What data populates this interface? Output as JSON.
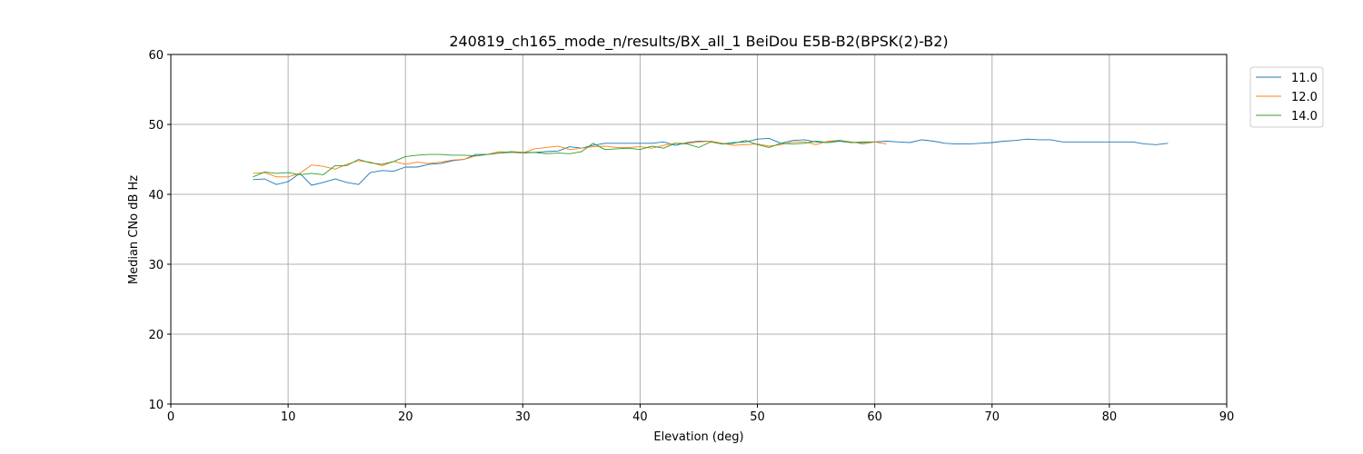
{
  "chart_data": {
    "type": "line",
    "title": "240819_ch165_mode_n/results/BX_all_1 BeiDou E5B-B2(BPSK(2)-B2)",
    "xlabel": "Elevation (deg)",
    "ylabel": "Median CNo dB Hz",
    "xlim": [
      0,
      90
    ],
    "ylim": [
      10,
      60
    ],
    "xticks": [
      0,
      10,
      20,
      30,
      40,
      50,
      60,
      70,
      80,
      90
    ],
    "yticks": [
      10,
      20,
      30,
      40,
      50,
      60
    ],
    "grid": true,
    "legend_position": "outside-right-top",
    "series": [
      {
        "name": "11.0",
        "color": "#1f77b4",
        "x": [
          7,
          8,
          9,
          10,
          11,
          12,
          13,
          14,
          15,
          16,
          17,
          18,
          19,
          20,
          21,
          22,
          23,
          24,
          25,
          26,
          27,
          28,
          29,
          30,
          31,
          32,
          33,
          34,
          35,
          36,
          37,
          38,
          39,
          40,
          41,
          42,
          43,
          44,
          45,
          46,
          47,
          48,
          49,
          50,
          51,
          52,
          53,
          54,
          55,
          56,
          57,
          58,
          59,
          60,
          61,
          62,
          63,
          64,
          65,
          66,
          67,
          68,
          69,
          70,
          71,
          72,
          73,
          74,
          75,
          76,
          77,
          78,
          79,
          80,
          81,
          82,
          83,
          84,
          85
        ],
        "y": [
          42.1,
          42.2,
          41.4,
          41.8,
          43.0,
          41.3,
          41.7,
          42.2,
          41.7,
          41.4,
          43.1,
          43.4,
          43.3,
          43.9,
          43.9,
          44.3,
          44.4,
          44.8,
          45.0,
          45.7,
          45.7,
          45.9,
          46.0,
          45.9,
          46.0,
          46.1,
          46.2,
          46.8,
          46.6,
          47.0,
          47.3,
          47.3,
          47.3,
          47.3,
          47.3,
          47.5,
          47.0,
          47.4,
          47.6,
          47.6,
          47.2,
          47.4,
          47.5,
          47.9,
          48.0,
          47.3,
          47.7,
          47.8,
          47.5,
          47.4,
          47.6,
          47.4,
          47.4,
          47.5,
          47.6,
          47.5,
          47.4,
          47.8,
          47.6,
          47.3,
          47.2,
          47.2,
          47.3,
          47.4,
          47.6,
          47.7,
          47.9,
          47.8,
          47.8,
          47.5,
          47.5,
          47.5,
          47.5,
          47.5,
          47.5,
          47.5,
          47.2,
          47.1,
          47.3
        ]
      },
      {
        "name": "12.0",
        "color": "#ff7f0e",
        "x": [
          7,
          8,
          9,
          10,
          11,
          12,
          13,
          14,
          15,
          16,
          17,
          18,
          19,
          20,
          21,
          22,
          23,
          24,
          25,
          26,
          27,
          28,
          29,
          30,
          31,
          32,
          33,
          34,
          35,
          36,
          37,
          38,
          39,
          40,
          41,
          42,
          43,
          44,
          45,
          46,
          47,
          48,
          49,
          50,
          51,
          52,
          53,
          54,
          55,
          56,
          57,
          58,
          59,
          60,
          61
        ],
        "y": [
          43.0,
          43.1,
          42.5,
          42.5,
          43.0,
          44.2,
          44.0,
          43.6,
          44.3,
          44.8,
          44.6,
          44.1,
          44.7,
          44.3,
          44.6,
          44.4,
          44.6,
          44.9,
          45.0,
          45.5,
          45.7,
          46.1,
          46.0,
          45.9,
          46.5,
          46.7,
          46.9,
          46.4,
          46.6,
          46.8,
          46.9,
          46.7,
          46.7,
          46.8,
          46.6,
          47.0,
          47.3,
          47.3,
          47.5,
          47.6,
          47.3,
          47.0,
          47.1,
          47.2,
          46.9,
          47.1,
          47.5,
          47.5,
          47.1,
          47.6,
          47.7,
          47.5,
          47.2,
          47.5,
          47.2
        ]
      },
      {
        "name": "14.0",
        "color": "#2ca02c",
        "x": [
          7,
          8,
          9,
          10,
          11,
          12,
          13,
          14,
          15,
          16,
          17,
          18,
          19,
          20,
          21,
          22,
          23,
          24,
          25,
          26,
          27,
          28,
          29,
          30,
          31,
          32,
          33,
          34,
          35,
          36,
          37,
          38,
          39,
          40,
          41,
          42,
          43,
          44,
          45,
          46,
          47,
          48,
          49,
          50,
          51,
          52,
          53,
          54,
          55,
          56,
          57,
          58,
          59,
          60
        ],
        "y": [
          42.5,
          43.2,
          43.0,
          43.1,
          42.8,
          43.0,
          42.8,
          44.1,
          44.1,
          45.0,
          44.5,
          44.3,
          44.7,
          45.4,
          45.6,
          45.7,
          45.7,
          45.6,
          45.6,
          45.5,
          45.7,
          45.9,
          46.1,
          46.0,
          46.0,
          45.8,
          45.9,
          45.8,
          46.1,
          47.3,
          46.4,
          46.5,
          46.6,
          46.4,
          46.9,
          46.6,
          47.3,
          47.2,
          46.7,
          47.5,
          47.2,
          47.3,
          47.7,
          47.1,
          46.7,
          47.3,
          47.2,
          47.3,
          47.6,
          47.4,
          47.7,
          47.4,
          47.5,
          47.5
        ]
      }
    ]
  }
}
